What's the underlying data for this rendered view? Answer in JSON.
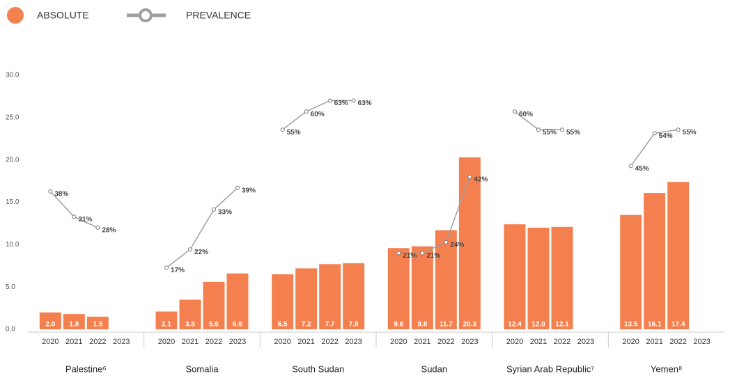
{
  "chart_data": {
    "type": "bar",
    "categories": [
      "Palestine⁶",
      "Somalia",
      "South Sudan",
      "Sudan",
      "Syrian Arab Republic⁷",
      "Yemen⁸"
    ],
    "years": [
      "2020",
      "2021",
      "2022",
      "2023"
    ],
    "ylim": [
      0,
      30
    ],
    "yticks": [
      {
        "value": 0,
        "label": "0.0"
      },
      {
        "value": 5,
        "label": "5.0"
      },
      {
        "value": 10,
        "label": "10.0"
      },
      {
        "value": 15,
        "label": "15.0"
      },
      {
        "value": 20,
        "label": "20.0"
      },
      {
        "value": 25,
        "label": "25.0"
      },
      {
        "value": 30,
        "label": "30.0"
      }
    ],
    "y2lim": [
      0,
      70
    ],
    "series": [
      {
        "name": "ABSOLUTE",
        "type": "bar",
        "color": "#f4804f",
        "values": [
          [
            2.0,
            1.8,
            1.5,
            null
          ],
          [
            2.1,
            3.5,
            5.6,
            6.6
          ],
          [
            6.5,
            7.2,
            7.7,
            7.8
          ],
          [
            9.6,
            9.8,
            11.7,
            20.3
          ],
          [
            12.4,
            12.0,
            12.1,
            null
          ],
          [
            13.5,
            16.1,
            17.4,
            null
          ]
        ],
        "value_labels": [
          [
            "2.0",
            "1.8",
            "1.5",
            null
          ],
          [
            "2.1",
            "3.5",
            "5.6",
            "6.6"
          ],
          [
            "6.5",
            "7.2",
            "7.7",
            "7.8"
          ],
          [
            "9.6",
            "9.8",
            "11.7",
            "20.3"
          ],
          [
            "12.4",
            "12.0",
            "12.1",
            null
          ],
          [
            "13.5",
            "16.1",
            "17.4",
            null
          ]
        ]
      },
      {
        "name": "PREVALENCE",
        "type": "line",
        "axis": "y2",
        "color": "#9e9e9e",
        "values": [
          [
            38,
            31,
            28,
            null
          ],
          [
            17,
            22,
            33,
            39
          ],
          [
            55,
            60,
            63,
            63
          ],
          [
            21,
            21,
            24,
            42
          ],
          [
            60,
            55,
            55,
            null
          ],
          [
            45,
            54,
            55,
            null
          ]
        ],
        "value_labels": [
          [
            "38%",
            "31%",
            "28%",
            null
          ],
          [
            "17%",
            "22%",
            "33%",
            "39%"
          ],
          [
            "55%",
            "60%",
            "63%",
            "63%"
          ],
          [
            "21%",
            "21%",
            "24%",
            "42%"
          ],
          [
            "60%",
            "55%",
            "55%",
            null
          ],
          [
            "45%",
            "54%",
            "55%",
            null
          ]
        ]
      }
    ]
  }
}
